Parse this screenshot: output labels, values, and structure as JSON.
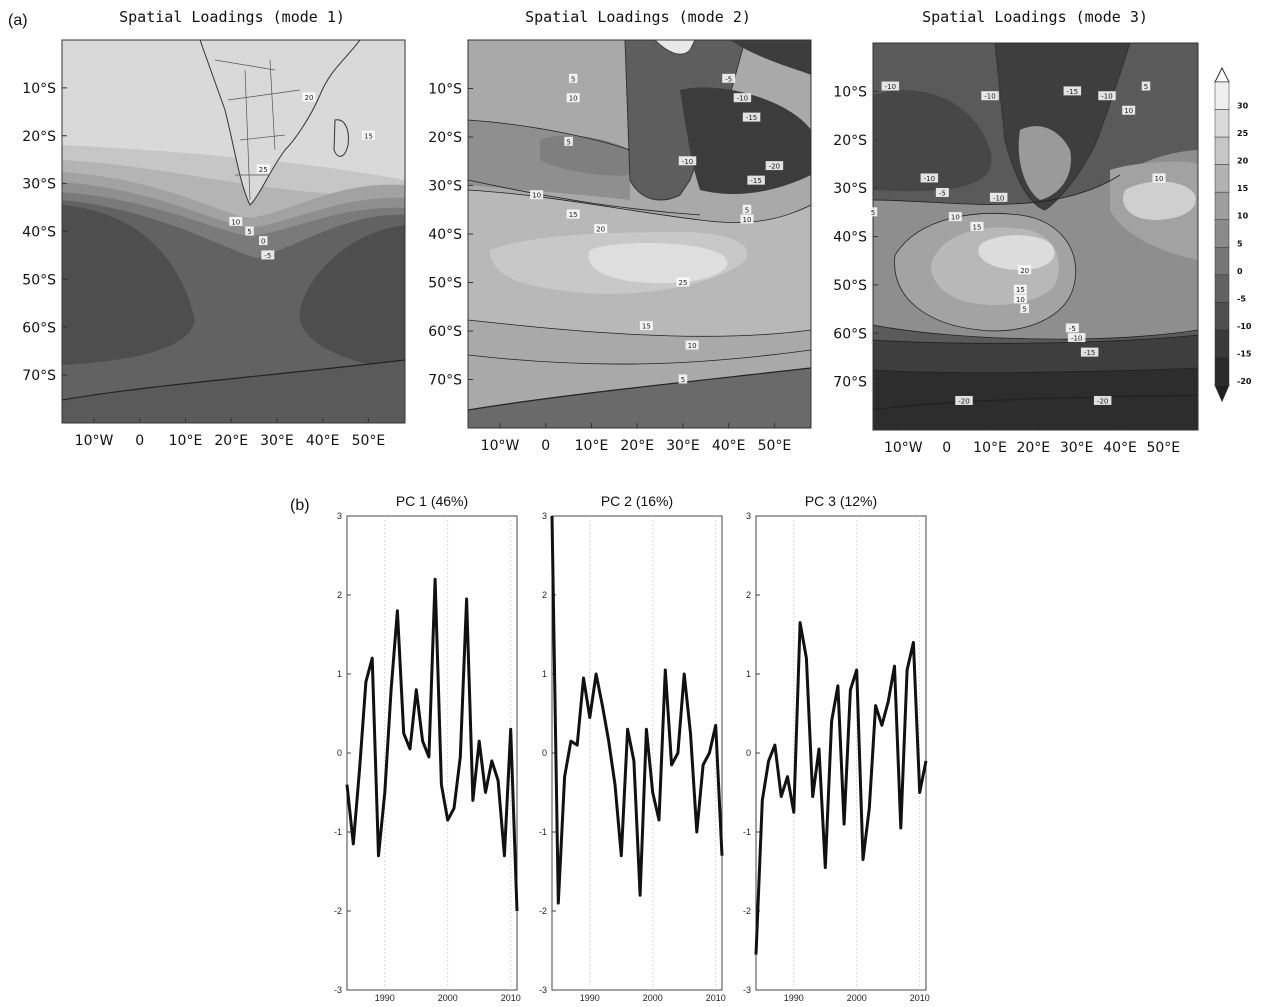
{
  "panel_labels": {
    "a": "(a)",
    "b": "(b)"
  },
  "colorbar": {
    "levels": [
      "30",
      "25",
      "20",
      "15",
      "10",
      "5",
      "0",
      "-5",
      "-10",
      "-15",
      "-20"
    ],
    "shades": [
      "#efefef",
      "#dadada",
      "#c6c6c6",
      "#b2b2b2",
      "#9e9e9e",
      "#8a8a8a",
      "#767676",
      "#626262",
      "#4e4e4e",
      "#3a3a3a",
      "#2a2a2a"
    ]
  },
  "chart_data": [
    {
      "type": "contour-map",
      "title": "Spatial Loadings (mode 1)",
      "x_ticks": [
        "10°W",
        "0",
        "10°E",
        "20°E",
        "30°E",
        "40°E",
        "50°E"
      ],
      "y_ticks": [
        "10°S",
        "20°S",
        "30°S",
        "40°S",
        "50°S",
        "60°S",
        "70°S"
      ],
      "lon_range": [
        -17,
        58
      ],
      "lat_range": [
        -80,
        0
      ],
      "contour_labels": [
        {
          "text": "20",
          "lon": 37,
          "lat": -12
        },
        {
          "text": "15",
          "lon": 50,
          "lat": -20
        },
        {
          "text": "25",
          "lon": 27,
          "lat": -27
        },
        {
          "text": "10",
          "lon": 21,
          "lat": -38
        },
        {
          "text": "5",
          "lon": 24,
          "lat": -40
        },
        {
          "text": "0",
          "lon": 27,
          "lat": -42
        },
        {
          "text": "-5",
          "lon": 28,
          "lat": -45
        }
      ]
    },
    {
      "type": "contour-map",
      "title": "Spatial Loadings (mode 2)",
      "x_ticks": [
        "10°W",
        "0",
        "10°E",
        "20°E",
        "30°E",
        "40°E",
        "50°E"
      ],
      "y_ticks": [
        "10°S",
        "20°S",
        "30°S",
        "40°S",
        "50°S",
        "60°S",
        "70°S"
      ],
      "lon_range": [
        -17,
        58
      ],
      "lat_range": [
        -80,
        0
      ],
      "contour_labels": [
        {
          "text": "5",
          "lon": 6,
          "lat": -8
        },
        {
          "text": "10",
          "lon": 6,
          "lat": -12
        },
        {
          "text": "-5",
          "lon": 40,
          "lat": -8
        },
        {
          "text": "-10",
          "lon": 43,
          "lat": -12
        },
        {
          "text": "-15",
          "lon": 45,
          "lat": -16
        },
        {
          "text": "5",
          "lon": 5,
          "lat": -21
        },
        {
          "text": "-10",
          "lon": 31,
          "lat": -25
        },
        {
          "text": "-20",
          "lon": 50,
          "lat": -26
        },
        {
          "text": "-15",
          "lon": 46,
          "lat": -29
        },
        {
          "text": "10",
          "lon": -2,
          "lat": -32
        },
        {
          "text": "15",
          "lon": 6,
          "lat": -36
        },
        {
          "text": "20",
          "lon": 12,
          "lat": -39
        },
        {
          "text": "5",
          "lon": 44,
          "lat": -35
        },
        {
          "text": "10",
          "lon": 44,
          "lat": -37
        },
        {
          "text": "25",
          "lon": 30,
          "lat": -50
        },
        {
          "text": "15",
          "lon": 22,
          "lat": -59
        },
        {
          "text": "10",
          "lon": 32,
          "lat": -63
        },
        {
          "text": "5",
          "lon": 30,
          "lat": -70
        }
      ]
    },
    {
      "type": "contour-map",
      "title": "Spatial Loadings (mode 3)",
      "x_ticks": [
        "10°W",
        "0",
        "10°E",
        "20°E",
        "30°E",
        "40°E",
        "50°E"
      ],
      "y_ticks": [
        "10°S",
        "20°S",
        "30°S",
        "40°S",
        "50°S",
        "60°S",
        "70°S"
      ],
      "lon_range": [
        -17,
        58
      ],
      "lat_range": [
        -80,
        0
      ],
      "contour_labels": [
        {
          "text": "-10",
          "lon": -13,
          "lat": -9
        },
        {
          "text": "-10",
          "lon": 10,
          "lat": -11
        },
        {
          "text": "-15",
          "lon": 29,
          "lat": -10
        },
        {
          "text": "-10",
          "lon": 37,
          "lat": -11
        },
        {
          "text": "5",
          "lon": 46,
          "lat": -9
        },
        {
          "text": "10",
          "lon": 42,
          "lat": -14
        },
        {
          "text": "-10",
          "lon": -4,
          "lat": -28
        },
        {
          "text": "-5",
          "lon": -1,
          "lat": -31
        },
        {
          "text": "-10",
          "lon": 12,
          "lat": -32
        },
        {
          "text": "5",
          "lon": -17,
          "lat": -35
        },
        {
          "text": "10",
          "lon": 2,
          "lat": -36
        },
        {
          "text": "15",
          "lon": 7,
          "lat": -38
        },
        {
          "text": "20",
          "lon": 18,
          "lat": -47
        },
        {
          "text": "15",
          "lon": 17,
          "lat": -51
        },
        {
          "text": "10",
          "lon": 17,
          "lat": -53
        },
        {
          "text": "5",
          "lon": 18,
          "lat": -55
        },
        {
          "text": "-5",
          "lon": 29,
          "lat": -59
        },
        {
          "text": "-10",
          "lon": 30,
          "lat": -61
        },
        {
          "text": "-15",
          "lon": 33,
          "lat": -64
        },
        {
          "text": "-20",
          "lon": 4,
          "lat": -74
        },
        {
          "text": "-20",
          "lon": 36,
          "lat": -74
        },
        {
          "text": "10",
          "lon": 49,
          "lat": -28
        }
      ]
    },
    {
      "type": "line",
      "title": "PC 1 (46%)",
      "x_ticks": [
        1990,
        2000,
        2010
      ],
      "xlim": [
        1984,
        2011
      ],
      "ylim": [
        -3,
        3
      ],
      "y_ticks": [
        -3,
        -2,
        -1,
        0,
        1,
        2,
        3
      ],
      "grid": true,
      "x": [
        1984,
        1985,
        1986,
        1987,
        1988,
        1989,
        1990,
        1991,
        1992,
        1993,
        1994,
        1995,
        1996,
        1997,
        1998,
        1999,
        2000,
        2001,
        2002,
        2003,
        2004,
        2005,
        2006,
        2007,
        2008,
        2009,
        2010,
        2011
      ],
      "values": [
        -0.4,
        -1.15,
        -0.2,
        0.9,
        1.2,
        -1.3,
        -0.5,
        0.8,
        1.8,
        0.25,
        0.05,
        0.8,
        0.15,
        -0.05,
        2.2,
        -0.4,
        -0.85,
        -0.7,
        -0.05,
        1.95,
        -0.6,
        0.15,
        -0.5,
        -0.1,
        -0.35,
        -1.3,
        0.3,
        -2.0
      ]
    },
    {
      "type": "line",
      "title": "PC 2 (16%)",
      "x_ticks": [
        1990,
        2000,
        2010
      ],
      "xlim": [
        1984,
        2011
      ],
      "ylim": [
        -3,
        3
      ],
      "y_ticks": [
        -3,
        -2,
        -1,
        0,
        1,
        2,
        3
      ],
      "grid": true,
      "x": [
        1984,
        1985,
        1986,
        1987,
        1988,
        1989,
        1990,
        1991,
        1992,
        1993,
        1994,
        1995,
        1996,
        1997,
        1998,
        1999,
        2000,
        2001,
        2002,
        2003,
        2004,
        2005,
        2006,
        2007,
        2008,
        2009,
        2010,
        2011
      ],
      "values": [
        3.0,
        -1.9,
        -0.3,
        0.15,
        0.1,
        0.95,
        0.45,
        1.0,
        0.6,
        0.15,
        -0.4,
        -1.3,
        0.3,
        -0.1,
        -1.8,
        0.3,
        -0.5,
        -0.85,
        1.05,
        -0.15,
        0.0,
        1.0,
        0.25,
        -1.0,
        -0.15,
        0.0,
        0.35,
        -1.3
      ]
    },
    {
      "type": "line",
      "title": "PC 3 (12%)",
      "x_ticks": [
        1990,
        2000,
        2010
      ],
      "xlim": [
        1984,
        2011
      ],
      "ylim": [
        -3,
        3
      ],
      "y_ticks": [
        -3,
        -2,
        -1,
        0,
        1,
        2,
        3
      ],
      "grid": true,
      "x": [
        1984,
        1985,
        1986,
        1987,
        1988,
        1989,
        1990,
        1991,
        1992,
        1993,
        1994,
        1995,
        1996,
        1997,
        1998,
        1999,
        2000,
        2001,
        2002,
        2003,
        2004,
        2005,
        2006,
        2007,
        2008,
        2009,
        2010,
        2011
      ],
      "values": [
        -2.55,
        -0.6,
        -0.1,
        0.1,
        -0.55,
        -0.3,
        -0.75,
        1.65,
        1.2,
        -0.55,
        0.05,
        -1.45,
        0.4,
        0.85,
        -0.9,
        0.8,
        1.05,
        -1.35,
        -0.7,
        0.6,
        0.35,
        0.65,
        1.1,
        -0.95,
        1.05,
        1.4,
        -0.5,
        -0.1
      ]
    }
  ]
}
